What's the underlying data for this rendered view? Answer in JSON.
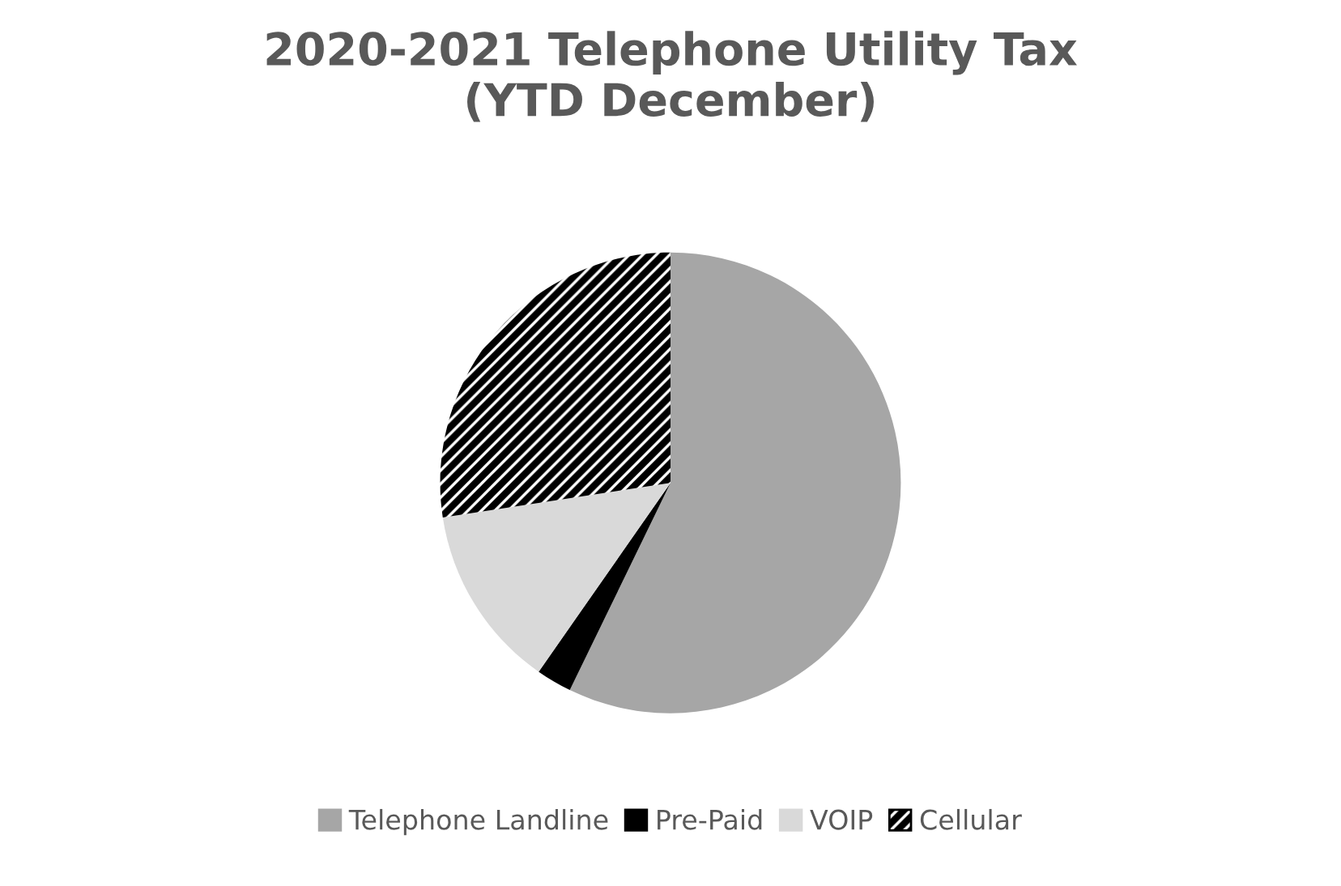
{
  "chart_data": {
    "type": "pie",
    "title": "2020-2021 Telephone Utility Tax\n(YTD December)",
    "categories": [
      "Telephone Landline",
      "Pre-Paid",
      "VOIP",
      "Cellular"
    ],
    "values": [
      57.2,
      2.5,
      12.9,
      27.4
    ],
    "colors": [
      "#a6a6a6",
      "#000000",
      "#d9d9d9",
      "#000000"
    ],
    "legend": "bottom"
  }
}
